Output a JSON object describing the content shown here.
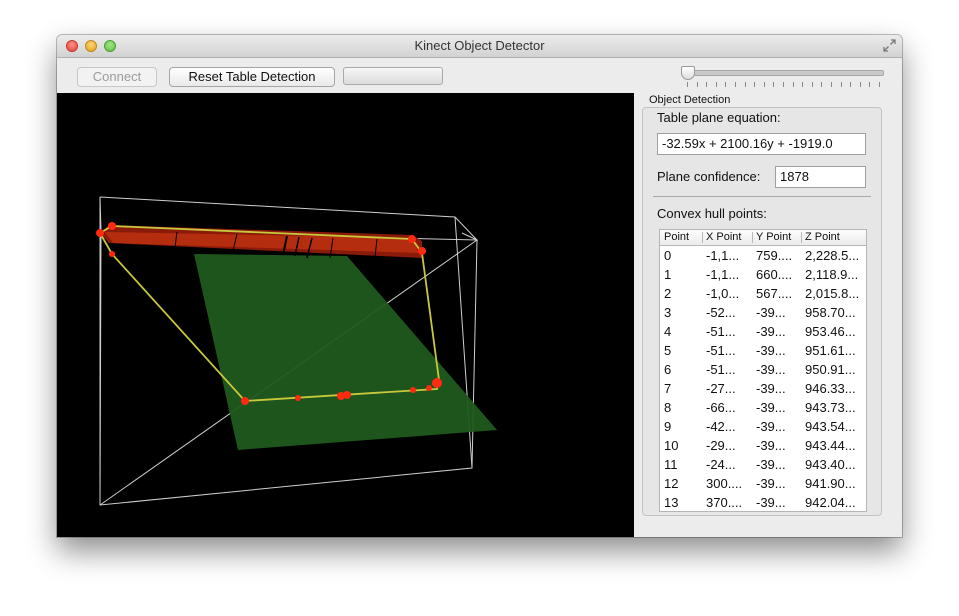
{
  "window": {
    "title": "Kinect Object Detector"
  },
  "toolbar": {
    "connect_label": "Connect",
    "reset_label": "Reset Table Detection",
    "progress": 0,
    "slider_value": 0
  },
  "panel": {
    "group_title": "Object Detection",
    "equation_label": "Table plane equation:",
    "equation_value": "-32.59x + 2100.16y + -1919.0",
    "confidence_label": "Plane confidence:",
    "confidence_value": "1878",
    "hull_label": "Convex hull points:",
    "hull_columns": [
      "Point",
      "X Point",
      "Y Point",
      "Z Point"
    ],
    "hull_rows": [
      [
        "0",
        "-1,1...",
        "759....",
        "2,228.5..."
      ],
      [
        "1",
        "-1,1...",
        "660....",
        "2,118.9..."
      ],
      [
        "2",
        "-1,0...",
        "567....",
        "2,015.8..."
      ],
      [
        "3",
        "-52...",
        "-39...",
        "958.70..."
      ],
      [
        "4",
        "-51...",
        "-39...",
        "953.46..."
      ],
      [
        "5",
        "-51...",
        "-39...",
        "951.61..."
      ],
      [
        "6",
        "-51...",
        "-39...",
        "950.91..."
      ],
      [
        "7",
        "-27...",
        "-39...",
        "946.33..."
      ],
      [
        "8",
        "-66...",
        "-39...",
        "943.73..."
      ],
      [
        "9",
        "-42...",
        "-39...",
        "943.54..."
      ],
      [
        "10",
        "-29...",
        "-39...",
        "943.44..."
      ],
      [
        "11",
        "-24...",
        "-39...",
        "943.40..."
      ],
      [
        "12",
        "300....",
        "-39...",
        "941.90..."
      ],
      [
        "13",
        "370....",
        "-39...",
        "942.04..."
      ]
    ]
  },
  "colors": {
    "viewport_bg": "#000000",
    "plane": "#1f5a1f",
    "hull_line": "#c8c83c",
    "points": "#ff2a10"
  }
}
